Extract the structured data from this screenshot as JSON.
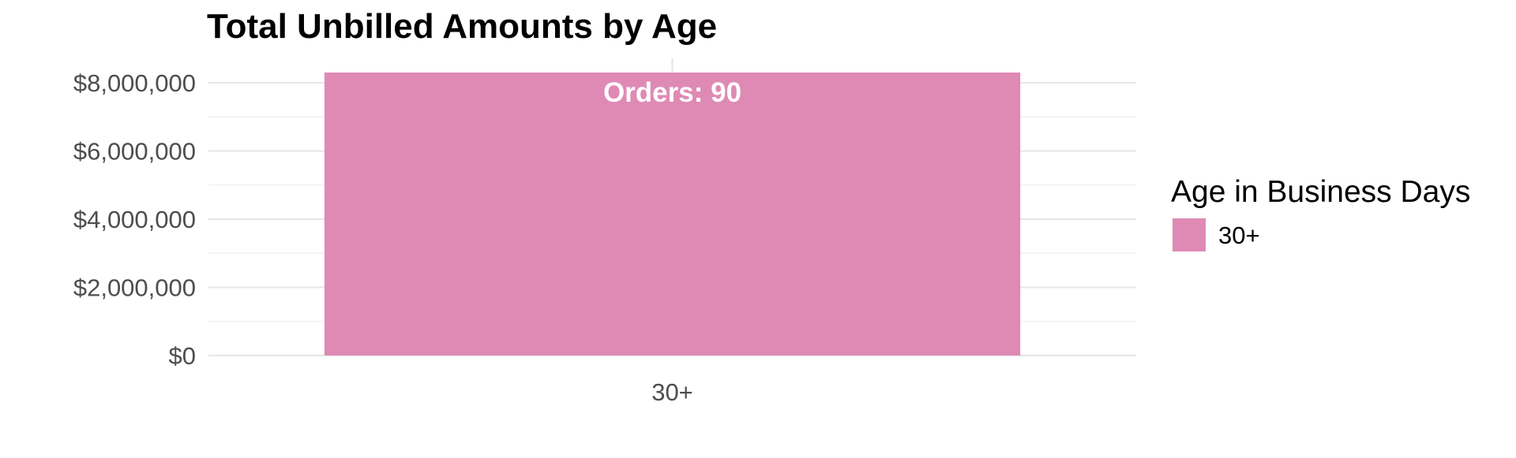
{
  "chart_data": {
    "type": "bar",
    "title": "Total Unbilled Amounts by Age",
    "categories": [
      "30+"
    ],
    "values": [
      8300000
    ],
    "bar_labels": [
      "Orders: 90"
    ],
    "xlabel": "",
    "ylabel": "",
    "ylim": [
      0,
      8300000
    ],
    "yticks": [
      0,
      2000000,
      4000000,
      6000000,
      8000000
    ],
    "ytick_labels": [
      "$0",
      "$2,000,000",
      "$4,000,000",
      "$6,000,000",
      "$8,000,000"
    ],
    "grid": true,
    "legend": {
      "title": "Age in Business Days",
      "placement": "right",
      "entries": [
        "30+"
      ]
    },
    "colors": {
      "bar": "#de8ab5",
      "bar_label": "#ffffff",
      "grid_major": "#e6e6e6",
      "grid_minor": "#f1f1f1",
      "tick_text": "#4d4d4d",
      "title_text": "#000000"
    }
  }
}
